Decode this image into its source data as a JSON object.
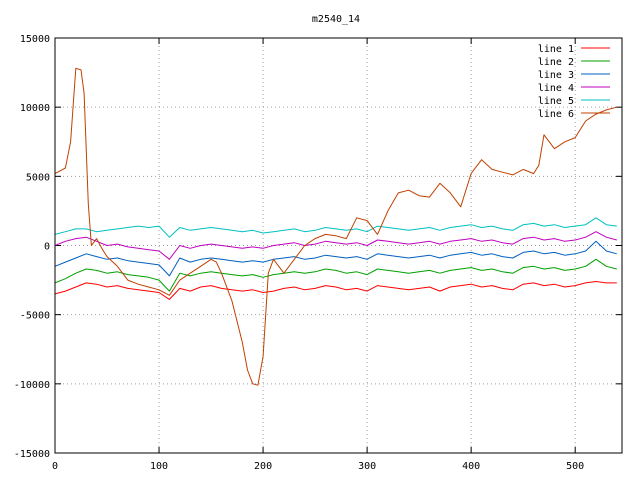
{
  "chart_data": {
    "type": "line",
    "title": "m2540_14",
    "xlabel": "",
    "ylabel": "",
    "xlim": [
      0,
      545
    ],
    "ylim": [
      -15000,
      15000
    ],
    "x_ticks": [
      0,
      100,
      200,
      300,
      400,
      500
    ],
    "y_ticks": [
      -15000,
      -10000,
      -5000,
      0,
      5000,
      10000,
      15000
    ],
    "grid": true,
    "legend_position": "top-right",
    "series": [
      {
        "name": "line 1",
        "color": "#ff0000",
        "x": [
          0,
          10,
          20,
          30,
          40,
          50,
          60,
          70,
          80,
          90,
          100,
          110,
          120,
          130,
          140,
          150,
          160,
          170,
          180,
          190,
          200,
          210,
          220,
          230,
          240,
          250,
          260,
          270,
          280,
          290,
          300,
          310,
          320,
          330,
          340,
          350,
          360,
          370,
          380,
          390,
          400,
          410,
          420,
          430,
          440,
          450,
          460,
          470,
          480,
          490,
          500,
          510,
          520,
          530,
          540
        ],
        "values": [
          -3500,
          -3300,
          -3000,
          -2700,
          -2800,
          -3000,
          -2900,
          -3100,
          -3200,
          -3300,
          -3400,
          -3900,
          -3100,
          -3300,
          -3000,
          -2900,
          -3100,
          -3200,
          -3300,
          -3200,
          -3400,
          -3300,
          -3100,
          -3000,
          -3200,
          -3100,
          -2900,
          -3000,
          -3200,
          -3100,
          -3300,
          -2900,
          -3000,
          -3100,
          -3200,
          -3100,
          -3000,
          -3300,
          -3000,
          -2900,
          -2800,
          -3000,
          -2900,
          -3100,
          -3200,
          -2800,
          -2700,
          -2900,
          -2800,
          -3000,
          -2900,
          -2700,
          -2600,
          -2700,
          -2700
        ]
      },
      {
        "name": "line 2",
        "color": "#00a000",
        "x": [
          0,
          10,
          20,
          30,
          40,
          50,
          60,
          70,
          80,
          90,
          100,
          110,
          120,
          130,
          140,
          150,
          160,
          170,
          180,
          190,
          200,
          210,
          220,
          230,
          240,
          250,
          260,
          270,
          280,
          290,
          300,
          310,
          320,
          330,
          340,
          350,
          360,
          370,
          380,
          390,
          400,
          410,
          420,
          430,
          440,
          450,
          460,
          470,
          480,
          490,
          500,
          510,
          520,
          530,
          540
        ],
        "values": [
          -2700,
          -2400,
          -2000,
          -1700,
          -1800,
          -2000,
          -1900,
          -2100,
          -2200,
          -2300,
          -2500,
          -3300,
          -2000,
          -2200,
          -2000,
          -1900,
          -2000,
          -2100,
          -2200,
          -2100,
          -2300,
          -2100,
          -2000,
          -1900,
          -2000,
          -1900,
          -1700,
          -1800,
          -2000,
          -1900,
          -2100,
          -1700,
          -1800,
          -1900,
          -2000,
          -1900,
          -1800,
          -2000,
          -1800,
          -1700,
          -1600,
          -1800,
          -1700,
          -1900,
          -2000,
          -1600,
          -1500,
          -1700,
          -1600,
          -1800,
          -1700,
          -1500,
          -1000,
          -1500,
          -1700
        ]
      },
      {
        "name": "line 3",
        "color": "#0060c0",
        "x": [
          0,
          10,
          20,
          30,
          40,
          50,
          60,
          70,
          80,
          90,
          100,
          110,
          120,
          130,
          140,
          150,
          160,
          170,
          180,
          190,
          200,
          210,
          220,
          230,
          240,
          250,
          260,
          270,
          280,
          290,
          300,
          310,
          320,
          330,
          340,
          350,
          360,
          370,
          380,
          390,
          400,
          410,
          420,
          430,
          440,
          450,
          460,
          470,
          480,
          490,
          500,
          510,
          520,
          530,
          540
        ],
        "values": [
          -1500,
          -1200,
          -900,
          -600,
          -800,
          -1000,
          -900,
          -1100,
          -1200,
          -1300,
          -1400,
          -2200,
          -900,
          -1200,
          -1000,
          -900,
          -1000,
          -1100,
          -1200,
          -1100,
          -1200,
          -1000,
          -900,
          -800,
          -1000,
          -900,
          -700,
          -800,
          -900,
          -800,
          -1000,
          -600,
          -700,
          -800,
          -900,
          -800,
          -700,
          -900,
          -700,
          -600,
          -500,
          -700,
          -600,
          -800,
          -900,
          -500,
          -400,
          -600,
          -500,
          -700,
          -600,
          -400,
          300,
          -400,
          -600
        ]
      },
      {
        "name": "line 4",
        "color": "#c000c0",
        "x": [
          0,
          10,
          20,
          30,
          40,
          50,
          60,
          70,
          80,
          90,
          100,
          110,
          120,
          130,
          140,
          150,
          160,
          170,
          180,
          190,
          200,
          210,
          220,
          230,
          240,
          250,
          260,
          270,
          280,
          290,
          300,
          310,
          320,
          330,
          340,
          350,
          360,
          370,
          380,
          390,
          400,
          410,
          420,
          430,
          440,
          450,
          460,
          470,
          480,
          490,
          500,
          510,
          520,
          530,
          540
        ],
        "values": [
          0,
          300,
          500,
          600,
          300,
          0,
          100,
          -100,
          -200,
          -300,
          -400,
          -1000,
          0,
          -200,
          0,
          100,
          0,
          -100,
          -200,
          -100,
          -200,
          0,
          100,
          200,
          0,
          100,
          300,
          200,
          100,
          200,
          0,
          400,
          300,
          200,
          100,
          200,
          300,
          100,
          300,
          400,
          500,
          300,
          400,
          200,
          100,
          500,
          600,
          400,
          500,
          300,
          400,
          600,
          1000,
          600,
          400
        ]
      },
      {
        "name": "line 5",
        "color": "#00c0c0",
        "x": [
          0,
          10,
          20,
          30,
          40,
          50,
          60,
          70,
          80,
          90,
          100,
          110,
          120,
          130,
          140,
          150,
          160,
          170,
          180,
          190,
          200,
          210,
          220,
          230,
          240,
          250,
          260,
          270,
          280,
          290,
          300,
          310,
          320,
          330,
          340,
          350,
          360,
          370,
          380,
          390,
          400,
          410,
          420,
          430,
          440,
          450,
          460,
          470,
          480,
          490,
          500,
          510,
          520,
          530,
          540
        ],
        "values": [
          800,
          1000,
          1200,
          1200,
          1000,
          1100,
          1200,
          1300,
          1400,
          1300,
          1400,
          600,
          1300,
          1100,
          1200,
          1300,
          1200,
          1100,
          1000,
          1100,
          900,
          1000,
          1100,
          1200,
          1000,
          1100,
          1300,
          1200,
          1100,
          1200,
          1000,
          1400,
          1300,
          1200,
          1100,
          1200,
          1300,
          1100,
          1300,
          1400,
          1500,
          1300,
          1400,
          1200,
          1100,
          1500,
          1600,
          1400,
          1500,
          1300,
          1400,
          1500,
          2000,
          1500,
          1400
        ]
      },
      {
        "name": "line 6",
        "color": "#c04000",
        "x": [
          0,
          5,
          10,
          15,
          20,
          25,
          28,
          32,
          35,
          40,
          45,
          50,
          60,
          70,
          80,
          90,
          100,
          110,
          120,
          130,
          140,
          150,
          155,
          160,
          170,
          180,
          185,
          190,
          195,
          200,
          205,
          210,
          220,
          230,
          240,
          250,
          260,
          270,
          280,
          290,
          300,
          310,
          320,
          330,
          340,
          350,
          360,
          370,
          380,
          390,
          400,
          410,
          420,
          430,
          440,
          450,
          460,
          465,
          470,
          480,
          490,
          500,
          510,
          520,
          530,
          540
        ],
        "values": [
          5200,
          5400,
          5600,
          7500,
          12800,
          12700,
          11000,
          3000,
          0,
          500,
          -200,
          -800,
          -1500,
          -2500,
          -2800,
          -3000,
          -3200,
          -3600,
          -2500,
          -2000,
          -1500,
          -1000,
          -1200,
          -2000,
          -4000,
          -7000,
          -9000,
          -10000,
          -10100,
          -8000,
          -2000,
          -1000,
          -2000,
          -1000,
          0,
          500,
          800,
          700,
          500,
          2000,
          1800,
          800,
          2500,
          3800,
          4000,
          3600,
          3500,
          4500,
          3800,
          2800,
          5200,
          6200,
          5500,
          5300,
          5100,
          5500,
          5200,
          5800,
          8000,
          7000,
          7500,
          7800,
          9000,
          9500,
          9800,
          10000
        ]
      }
    ]
  }
}
